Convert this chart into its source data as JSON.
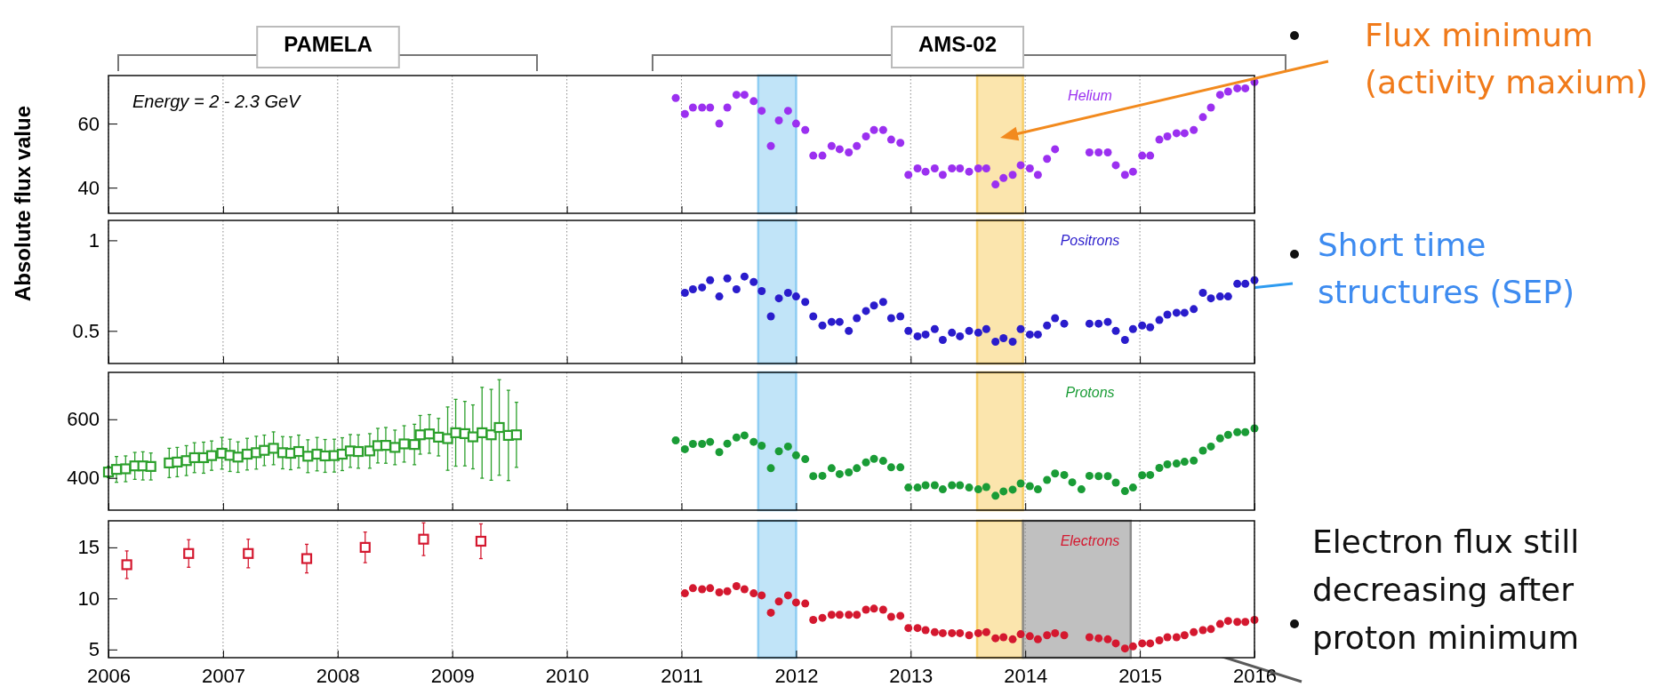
{
  "chart_data": [
    {
      "type": "scatter",
      "ylabel": "Absolute flux value",
      "annotations": [
        "PAMELA",
        "AMS-02",
        "Energy = 2 - 2.3 GeV",
        "Flux minimum\n(activity maxium)",
        "Short time\nstructures (SEP)",
        "Electron flux still\ndecreasing after\nproton minimum"
      ],
      "xlim": [
        2006,
        2016
      ],
      "xticks": [
        2006,
        2007,
        2008,
        2009,
        2010,
        2011,
        2012,
        2013,
        2014,
        2015,
        2016
      ],
      "ylim": [
        32,
        75
      ],
      "yticks": [
        40,
        60
      ],
      "grid": "x",
      "tick_labels": "y",
      "bands": [
        {
          "axis": "x",
          "from": 2011.67,
          "to": 2012.0,
          "color": "#8ecdf3"
        },
        {
          "axis": "x",
          "from": 2013.58,
          "to": 2013.98,
          "color": "#f7cf6a"
        }
      ],
      "series": [
        {
          "name": "Helium",
          "color": "#9b30f0",
          "marker": "circle",
          "x": [
            2010.95,
            2011.03,
            2011.1,
            2011.18,
            2011.25,
            2011.33,
            2011.4,
            2011.48,
            2011.55,
            2011.63,
            2011.7,
            2011.78,
            2011.85,
            2011.93,
            2012.0,
            2012.08,
            2012.15,
            2012.23,
            2012.31,
            2012.38,
            2012.46,
            2012.53,
            2012.61,
            2012.68,
            2012.76,
            2012.83,
            2012.91,
            2012.98,
            2013.06,
            2013.13,
            2013.21,
            2013.28,
            2013.36,
            2013.43,
            2013.51,
            2013.59,
            2013.66,
            2013.74,
            2013.81,
            2013.89,
            2013.96,
            2014.04,
            2014.11,
            2014.19,
            2014.26,
            2014.56,
            2014.64,
            2014.72,
            2014.79,
            2014.87,
            2014.94,
            2015.02,
            2015.09,
            2015.17,
            2015.24,
            2015.32,
            2015.39,
            2015.47,
            2015.55,
            2015.62,
            2015.7,
            2015.77,
            2015.85,
            2015.92,
            2016.0
          ],
          "values": [
            68,
            63,
            65,
            65,
            65,
            60,
            65,
            69,
            69,
            67,
            64,
            53,
            61,
            64,
            60,
            58,
            50,
            50,
            53,
            52,
            51,
            53,
            56,
            58,
            58,
            55,
            54,
            44,
            46,
            45,
            46,
            44,
            46,
            46,
            45,
            46,
            46,
            41,
            43,
            44,
            47,
            46,
            44,
            49,
            52,
            51,
            51,
            51,
            47,
            44,
            45,
            50,
            50,
            55,
            56,
            57,
            57,
            58,
            62,
            65,
            69,
            70,
            71,
            71,
            73
          ]
        }
      ]
    },
    {
      "type": "scatter",
      "xlim": [
        2006,
        2016
      ],
      "xticks": [
        2006,
        2007,
        2008,
        2009,
        2010,
        2011,
        2012,
        2013,
        2014,
        2015,
        2016
      ],
      "ylim": [
        0.32,
        1.11
      ],
      "yticks": [
        0.5,
        1
      ],
      "grid": "x",
      "tick_labels": "y",
      "bands": [
        {
          "axis": "x",
          "from": 2011.67,
          "to": 2012.0,
          "color": "#8ecdf3"
        },
        {
          "axis": "x",
          "from": 2013.58,
          "to": 2013.98,
          "color": "#f7cf6a"
        }
      ],
      "series": [
        {
          "name": "Positrons",
          "color": "#2a1ccc",
          "marker": "circle",
          "x": [
            2011.03,
            2011.1,
            2011.18,
            2011.25,
            2011.33,
            2011.4,
            2011.48,
            2011.55,
            2011.63,
            2011.7,
            2011.78,
            2011.85,
            2011.93,
            2012.0,
            2012.08,
            2012.15,
            2012.23,
            2012.31,
            2012.38,
            2012.46,
            2012.53,
            2012.61,
            2012.68,
            2012.76,
            2012.83,
            2012.91,
            2012.98,
            2013.06,
            2013.13,
            2013.21,
            2013.28,
            2013.36,
            2013.43,
            2013.51,
            2013.59,
            2013.66,
            2013.74,
            2013.81,
            2013.89,
            2013.96,
            2014.04,
            2014.11,
            2014.19,
            2014.26,
            2014.34,
            2014.56,
            2014.64,
            2014.72,
            2014.79,
            2014.87,
            2014.94,
            2015.02,
            2015.09,
            2015.17,
            2015.24,
            2015.32,
            2015.39,
            2015.47,
            2015.55,
            2015.62,
            2015.7,
            2015.77,
            2015.85,
            2015.92,
            2016.0
          ],
          "values": [
            0.71,
            0.73,
            0.74,
            0.78,
            0.69,
            0.79,
            0.73,
            0.8,
            0.77,
            0.72,
            0.58,
            0.68,
            0.71,
            0.69,
            0.66,
            0.58,
            0.53,
            0.55,
            0.55,
            0.5,
            0.57,
            0.61,
            0.64,
            0.66,
            0.57,
            0.58,
            0.5,
            0.47,
            0.48,
            0.51,
            0.45,
            0.49,
            0.47,
            0.5,
            0.49,
            0.51,
            0.44,
            0.46,
            0.44,
            0.51,
            0.48,
            0.48,
            0.53,
            0.57,
            0.54,
            0.54,
            0.54,
            0.55,
            0.5,
            0.45,
            0.51,
            0.53,
            0.52,
            0.56,
            0.59,
            0.6,
            0.6,
            0.62,
            0.71,
            0.68,
            0.69,
            0.69,
            0.76,
            0.76,
            0.78
          ]
        }
      ]
    },
    {
      "type": "scatter",
      "x": [
        2010.95,
        2011.03,
        2011.1,
        2011.18,
        2011.25,
        2011.33,
        2011.4,
        2011.48,
        2011.55,
        2011.63,
        2011.7,
        2011.78,
        2011.85,
        2011.93,
        2012.0,
        2012.08,
        2012.15,
        2012.23,
        2012.31,
        2012.38,
        2012.46,
        2012.53,
        2012.61,
        2012.68,
        2012.76,
        2012.83,
        2012.91,
        2012.98,
        2013.06,
        2013.13,
        2013.21,
        2013.28,
        2013.36,
        2013.43,
        2013.51,
        2013.59,
        2013.66,
        2013.74,
        2013.81,
        2013.89,
        2013.96,
        2014.04,
        2014.11,
        2014.19,
        2014.26,
        2014.34,
        2014.41,
        2014.49,
        2014.56,
        2014.64,
        2014.72,
        2014.79,
        2014.87,
        2014.94,
        2015.02,
        2015.09,
        2015.17,
        2015.24,
        2015.32,
        2015.39,
        2015.47,
        2015.55,
        2015.62,
        2015.7,
        2015.77,
        2015.85,
        2015.92,
        2016.0
      ],
      "xlim": [
        2006,
        2016
      ],
      "xticks": [
        2006,
        2007,
        2008,
        2009,
        2010,
        2011,
        2012,
        2013,
        2014,
        2015,
        2016
      ],
      "ylim": [
        290,
        760
      ],
      "yticks": [
        400,
        600
      ],
      "grid": "x",
      "tick_labels": "y",
      "bands": [
        {
          "axis": "x",
          "from": 2011.67,
          "to": 2012.0,
          "color": "#8ecdf3"
        },
        {
          "axis": "x",
          "from": 2013.58,
          "to": 2013.98,
          "color": "#f7cf6a"
        }
      ],
      "series": [
        {
          "color": "#2ca02c",
          "marker": "square",
          "x": [
            2006.0,
            2006.07,
            2006.15,
            2006.23,
            2006.3,
            2006.37,
            2006.53,
            2006.6,
            2006.68,
            2006.75,
            2006.83,
            2006.9,
            2006.99,
            2007.06,
            2007.13,
            2007.21,
            2007.29,
            2007.36,
            2007.44,
            2007.52,
            2007.59,
            2007.66,
            2007.74,
            2007.82,
            2007.89,
            2007.97,
            2008.04,
            2008.11,
            2008.18,
            2008.28,
            2008.35,
            2008.42,
            2008.5,
            2008.58,
            2008.67,
            2008.72,
            2008.8,
            2008.88,
            2008.96,
            2009.03,
            2009.11,
            2009.18,
            2009.26,
            2009.34,
            2009.41,
            2009.49,
            2009.56
          ],
          "values": [
            420,
            429,
            431,
            441,
            441,
            439,
            451,
            454,
            459,
            469,
            469,
            476,
            484,
            477,
            471,
            481,
            486,
            494,
            501,
            486,
            484,
            490,
            474,
            481,
            475,
            476,
            481,
            492,
            490,
            492,
            510,
            511,
            504,
            516,
            514,
            547,
            550,
            539,
            534,
            554,
            551,
            540,
            554,
            547,
            572,
            545,
            547
          ],
          "errors": [
            19,
            44,
            44,
            46,
            48,
            46,
            50,
            50,
            51,
            51,
            53,
            50,
            54,
            55,
            52,
            54,
            56,
            52,
            56,
            55,
            56,
            56,
            56,
            57,
            56,
            56,
            56,
            56,
            57,
            59,
            59,
            61,
            59,
            62,
            69,
            66,
            66,
            64,
            108,
            114,
            110,
            109,
            155,
            155,
            163,
            154,
            111
          ]
        },
        {
          "name": "Protons",
          "color": "#1a9c36",
          "marker": "circle",
          "values": [
            528,
            498,
            516,
            516,
            523,
            488,
            517,
            538,
            545,
            523,
            510,
            433,
            491,
            507,
            477,
            464,
            406,
            407,
            433,
            413,
            419,
            433,
            453,
            465,
            458,
            436,
            436,
            367,
            367,
            375,
            375,
            361,
            375,
            375,
            367,
            361,
            369,
            339,
            354,
            360,
            381,
            372,
            361,
            393,
            415,
            410,
            385,
            361,
            407,
            406,
            406,
            384,
            355,
            367,
            409,
            410,
            434,
            446,
            449,
            455,
            459,
            493,
            507,
            535,
            547,
            556,
            556,
            569
          ]
        }
      ]
    },
    {
      "type": "scatter",
      "xlim": [
        2006,
        2016
      ],
      "xticks": [
        2006,
        2007,
        2008,
        2009,
        2010,
        2011,
        2012,
        2013,
        2014,
        2015,
        2016
      ],
      "ylim": [
        4.2,
        17.6
      ],
      "yticks": [
        5,
        10,
        15
      ],
      "grid": "x",
      "bands": [
        {
          "axis": "x",
          "from": 2011.67,
          "to": 2012.0,
          "color": "#8ecdf3"
        },
        {
          "axis": "x",
          "from": 2013.58,
          "to": 2013.98,
          "color": "#f7cf6a"
        },
        {
          "axis": "x",
          "from": 2013.98,
          "to": 2014.92,
          "color": "#8c8c8c"
        }
      ],
      "series": [
        {
          "color": "#d4182f",
          "marker": "square",
          "x": [
            2006.16,
            2006.7,
            2007.22,
            2007.73,
            2008.24,
            2008.75,
            2009.25
          ],
          "values": [
            13.3,
            14.4,
            14.4,
            13.9,
            15.0,
            15.8,
            15.6
          ],
          "errors": [
            1.35,
            1.35,
            1.4,
            1.4,
            1.5,
            1.6,
            1.7
          ]
        },
        {
          "name": "Electrons",
          "color": "#d4182f",
          "marker": "circle",
          "x": [
            2011.03,
            2011.1,
            2011.18,
            2011.25,
            2011.33,
            2011.4,
            2011.48,
            2011.55,
            2011.63,
            2011.7,
            2011.78,
            2011.85,
            2011.93,
            2012.0,
            2012.08,
            2012.15,
            2012.23,
            2012.31,
            2012.38,
            2012.46,
            2012.53,
            2012.61,
            2012.68,
            2012.76,
            2012.83,
            2012.91,
            2012.98,
            2013.06,
            2013.13,
            2013.21,
            2013.28,
            2013.36,
            2013.43,
            2013.51,
            2013.59,
            2013.66,
            2013.74,
            2013.81,
            2013.89,
            2013.96,
            2014.04,
            2014.11,
            2014.19,
            2014.26,
            2014.34,
            2014.56,
            2014.64,
            2014.72,
            2014.79,
            2014.87,
            2014.94,
            2015.02,
            2015.09,
            2015.17,
            2015.24,
            2015.32,
            2015.39,
            2015.47,
            2015.55,
            2015.62,
            2015.7,
            2015.77,
            2015.85,
            2015.92,
            2016.0
          ],
          "values": [
            10.5,
            11.0,
            10.9,
            11.0,
            10.6,
            10.7,
            11.2,
            10.9,
            10.5,
            10.3,
            8.6,
            9.7,
            10.3,
            9.6,
            9.5,
            7.9,
            8.1,
            8.4,
            8.4,
            8.4,
            8.4,
            8.9,
            9.0,
            8.9,
            8.2,
            8.3,
            7.1,
            7.1,
            6.9,
            6.7,
            6.6,
            6.6,
            6.6,
            6.4,
            6.6,
            6.7,
            6.1,
            6.2,
            6.0,
            6.5,
            6.3,
            6.0,
            6.4,
            6.6,
            6.4,
            6.2,
            6.1,
            6.0,
            5.6,
            5.1,
            5.3,
            5.6,
            5.6,
            5.9,
            6.2,
            6.2,
            6.4,
            6.7,
            6.9,
            7.0,
            7.5,
            7.8,
            7.7,
            7.7,
            7.9
          ]
        }
      ]
    }
  ]
}
